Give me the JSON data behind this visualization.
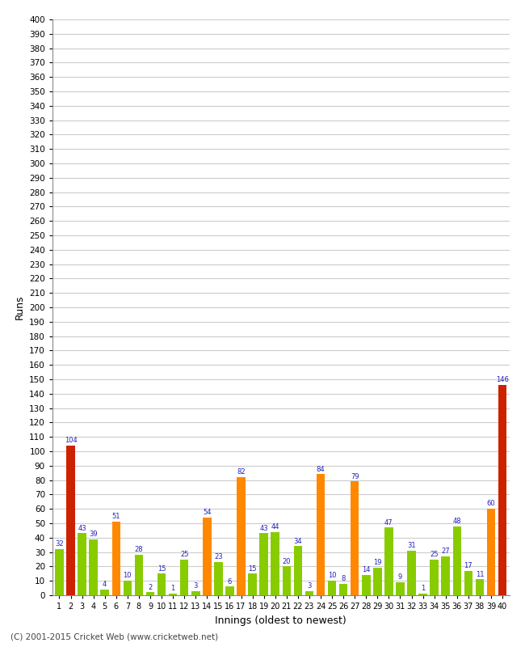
{
  "innings": [
    1,
    2,
    3,
    4,
    5,
    6,
    7,
    8,
    9,
    10,
    11,
    12,
    13,
    14,
    15,
    16,
    17,
    18,
    19,
    20,
    21,
    22,
    23,
    24,
    25,
    26,
    27,
    28,
    29,
    30,
    31,
    32,
    33,
    34,
    35,
    36,
    37,
    38,
    39,
    40
  ],
  "runs": [
    32,
    104,
    43,
    39,
    4,
    51,
    10,
    28,
    2,
    15,
    1,
    25,
    3,
    54,
    23,
    6,
    82,
    15,
    43,
    44,
    20,
    34,
    3,
    84,
    10,
    8,
    79,
    14,
    19,
    47,
    9,
    31,
    1,
    25,
    27,
    48,
    17,
    11,
    60,
    146
  ],
  "colors": [
    "#88cc00",
    "#cc2200",
    "#88cc00",
    "#88cc00",
    "#88cc00",
    "#ff8800",
    "#88cc00",
    "#88cc00",
    "#88cc00",
    "#88cc00",
    "#88cc00",
    "#88cc00",
    "#88cc00",
    "#ff8800",
    "#88cc00",
    "#88cc00",
    "#ff8800",
    "#88cc00",
    "#88cc00",
    "#88cc00",
    "#88cc00",
    "#88cc00",
    "#88cc00",
    "#ff8800",
    "#88cc00",
    "#88cc00",
    "#ff8800",
    "#88cc00",
    "#88cc00",
    "#88cc00",
    "#88cc00",
    "#88cc00",
    "#88cc00",
    "#88cc00",
    "#88cc00",
    "#88cc00",
    "#88cc00",
    "#88cc00",
    "#ff8800",
    "#cc2200"
  ],
  "xlabel": "Innings (oldest to newest)",
  "ylabel": "Runs",
  "ylim": [
    0,
    400
  ],
  "yticks": [
    0,
    10,
    20,
    30,
    40,
    50,
    60,
    70,
    80,
    90,
    100,
    110,
    120,
    130,
    140,
    150,
    160,
    170,
    180,
    190,
    200,
    210,
    220,
    230,
    240,
    250,
    260,
    270,
    280,
    290,
    300,
    310,
    320,
    330,
    340,
    350,
    360,
    370,
    380,
    390,
    400
  ],
  "label_color": "#2222bb",
  "bg_color": "#ffffff",
  "grid_color": "#cccccc",
  "footer": "(C) 2001-2015 Cricket Web (www.cricketweb.net)"
}
